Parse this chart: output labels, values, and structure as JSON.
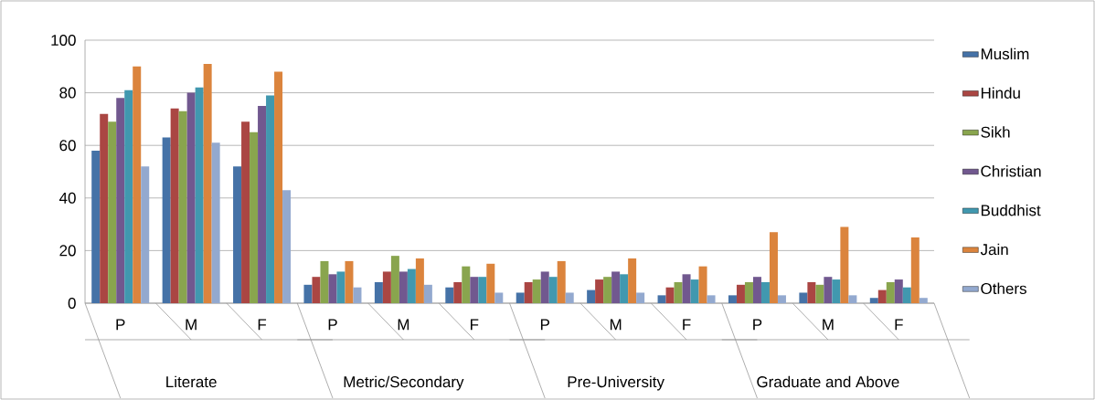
{
  "chart_data": {
    "type": "bar",
    "categories": [
      "P",
      "M",
      "F",
      "P",
      "M",
      "F",
      "P",
      "M",
      "F",
      "P",
      "M",
      "F"
    ],
    "annotations": [
      "Literate",
      "Metric/Secondary",
      "Pre-University",
      "Graduate and Above"
    ],
    "series": [
      {
        "name": "Muslim",
        "color": "#4572a7",
        "values": [
          58,
          63,
          52,
          7,
          8,
          6,
          4,
          5,
          3,
          3,
          4,
          2
        ]
      },
      {
        "name": "Hindu",
        "color": "#aa4643",
        "values": [
          72,
          74,
          69,
          10,
          12,
          8,
          8,
          9,
          6,
          7,
          8,
          5
        ]
      },
      {
        "name": "Sikh",
        "color": "#89a54e",
        "values": [
          69,
          73,
          65,
          16,
          18,
          14,
          9,
          10,
          8,
          8,
          7,
          8
        ]
      },
      {
        "name": "Christian",
        "color": "#71588f",
        "values": [
          78,
          80,
          75,
          11,
          12,
          10,
          12,
          12,
          11,
          10,
          10,
          9
        ]
      },
      {
        "name": "Buddhist",
        "color": "#4198af",
        "values": [
          81,
          82,
          79,
          12,
          13,
          10,
          10,
          11,
          9,
          8,
          9,
          6
        ]
      },
      {
        "name": "Jain",
        "color": "#db843d",
        "values": [
          90,
          91,
          88,
          16,
          17,
          15,
          16,
          17,
          14,
          27,
          29,
          25
        ]
      },
      {
        "name": "Others",
        "color": "#93a9cf",
        "values": [
          52,
          61,
          43,
          6,
          7,
          4,
          4,
          4,
          3,
          3,
          3,
          2
        ]
      }
    ],
    "ylim": [
      0,
      100
    ],
    "yticks": [
      0,
      20,
      40,
      60,
      80,
      100
    ],
    "grid": "y",
    "legend": "right"
  }
}
